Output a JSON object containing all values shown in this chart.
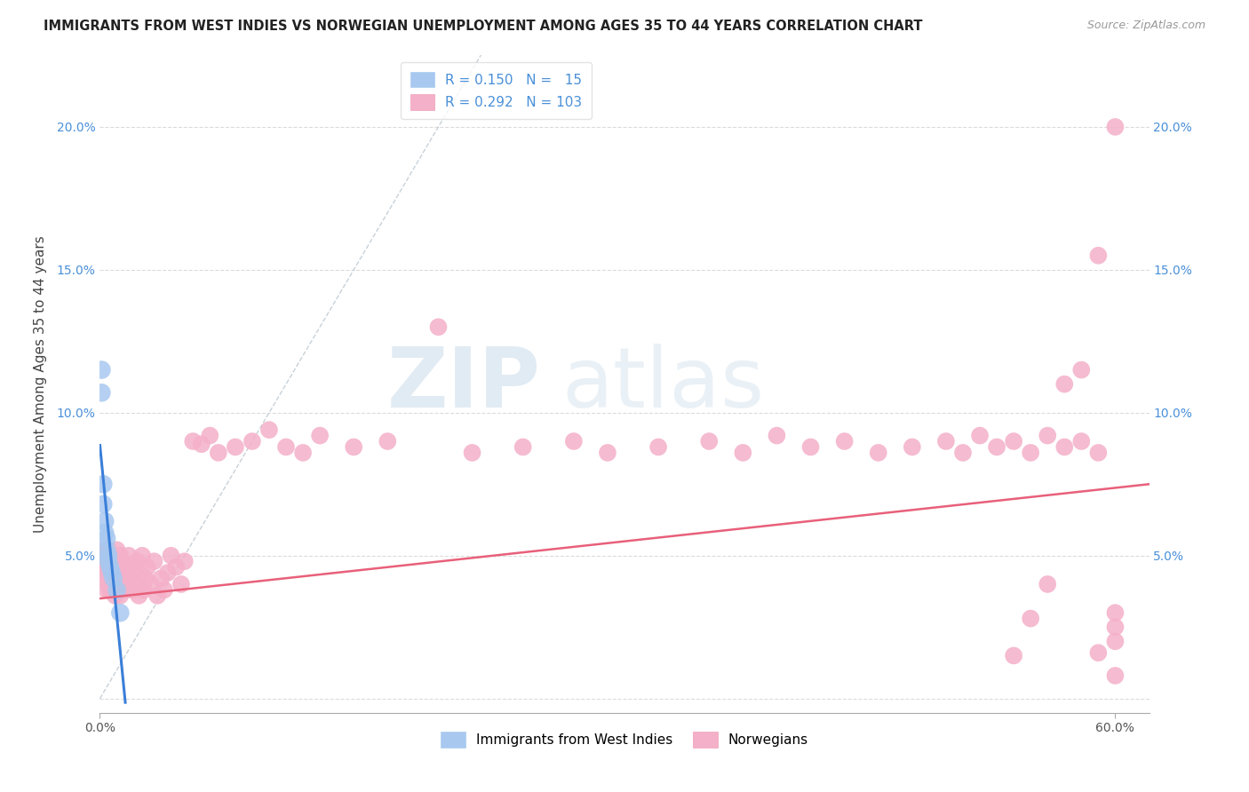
{
  "title": "IMMIGRANTS FROM WEST INDIES VS NORWEGIAN UNEMPLOYMENT AMONG AGES 35 TO 44 YEARS CORRELATION CHART",
  "source": "Source: ZipAtlas.com",
  "ylabel": "Unemployment Among Ages 35 to 44 years",
  "xlim": [
    0.0,
    0.62
  ],
  "ylim": [
    -0.005,
    0.225
  ],
  "xtick_vals": [
    0.0,
    0.6
  ],
  "xtick_labels": [
    "0.0%",
    "60.0%"
  ],
  "ytick_vals": [
    0.0,
    0.05,
    0.1,
    0.15,
    0.2
  ],
  "ytick_labels": [
    "",
    "5.0%",
    "10.0%",
    "15.0%",
    "20.0%"
  ],
  "r_blue": 0.15,
  "n_blue": 15,
  "r_pink": 0.292,
  "n_pink": 103,
  "blue_color": "#a8c8f0",
  "pink_color": "#f4b0c8",
  "trend_blue_color": "#3a7fd9",
  "trend_pink_color": "#e8607a",
  "diagonal_color": "#b0bec8",
  "watermark_zip": "ZIP",
  "watermark_atlas": "atlas",
  "legend_text_color": "#4a90d9",
  "blue_x": [
    0.001,
    0.001,
    0.002,
    0.002,
    0.003,
    0.003,
    0.004,
    0.004,
    0.005,
    0.005,
    0.006,
    0.007,
    0.008,
    0.01,
    0.012
  ],
  "blue_y": [
    0.115,
    0.107,
    0.075,
    0.068,
    0.062,
    0.058,
    0.056,
    0.052,
    0.05,
    0.048,
    0.046,
    0.044,
    0.042,
    0.038,
    0.03
  ],
  "pink_x": [
    0.001,
    0.002,
    0.002,
    0.003,
    0.003,
    0.004,
    0.004,
    0.004,
    0.005,
    0.005,
    0.005,
    0.006,
    0.006,
    0.006,
    0.007,
    0.007,
    0.007,
    0.008,
    0.008,
    0.009,
    0.009,
    0.01,
    0.01,
    0.01,
    0.011,
    0.011,
    0.012,
    0.012,
    0.013,
    0.013,
    0.014,
    0.015,
    0.015,
    0.016,
    0.017,
    0.018,
    0.019,
    0.02,
    0.021,
    0.022,
    0.023,
    0.024,
    0.025,
    0.026,
    0.027,
    0.028,
    0.03,
    0.032,
    0.034,
    0.036,
    0.038,
    0.04,
    0.042,
    0.045,
    0.048,
    0.05,
    0.055,
    0.06,
    0.065,
    0.07,
    0.08,
    0.09,
    0.1,
    0.11,
    0.12,
    0.13,
    0.15,
    0.17,
    0.2,
    0.22,
    0.25,
    0.28,
    0.3,
    0.33,
    0.36,
    0.38,
    0.4,
    0.42,
    0.44,
    0.46,
    0.48,
    0.5,
    0.51,
    0.52,
    0.53,
    0.54,
    0.55,
    0.56,
    0.57,
    0.58,
    0.59,
    0.6,
    0.6,
    0.6,
    0.6,
    0.59,
    0.58,
    0.57,
    0.56,
    0.55,
    0.54,
    0.59,
    0.6
  ],
  "pink_y": [
    0.046,
    0.048,
    0.052,
    0.044,
    0.05,
    0.038,
    0.042,
    0.05,
    0.04,
    0.046,
    0.052,
    0.038,
    0.044,
    0.05,
    0.04,
    0.046,
    0.038,
    0.042,
    0.048,
    0.036,
    0.044,
    0.04,
    0.046,
    0.052,
    0.038,
    0.044,
    0.05,
    0.036,
    0.042,
    0.048,
    0.04,
    0.046,
    0.038,
    0.044,
    0.05,
    0.042,
    0.038,
    0.046,
    0.04,
    0.048,
    0.036,
    0.044,
    0.05,
    0.038,
    0.042,
    0.046,
    0.04,
    0.048,
    0.036,
    0.042,
    0.038,
    0.044,
    0.05,
    0.046,
    0.04,
    0.048,
    0.09,
    0.089,
    0.092,
    0.086,
    0.088,
    0.09,
    0.094,
    0.088,
    0.086,
    0.092,
    0.088,
    0.09,
    0.13,
    0.086,
    0.088,
    0.09,
    0.086,
    0.088,
    0.09,
    0.086,
    0.092,
    0.088,
    0.09,
    0.086,
    0.088,
    0.09,
    0.086,
    0.092,
    0.088,
    0.09,
    0.086,
    0.092,
    0.088,
    0.09,
    0.086,
    0.03,
    0.025,
    0.02,
    0.2,
    0.155,
    0.115,
    0.11,
    0.04,
    0.028,
    0.015,
    0.016,
    0.008
  ]
}
